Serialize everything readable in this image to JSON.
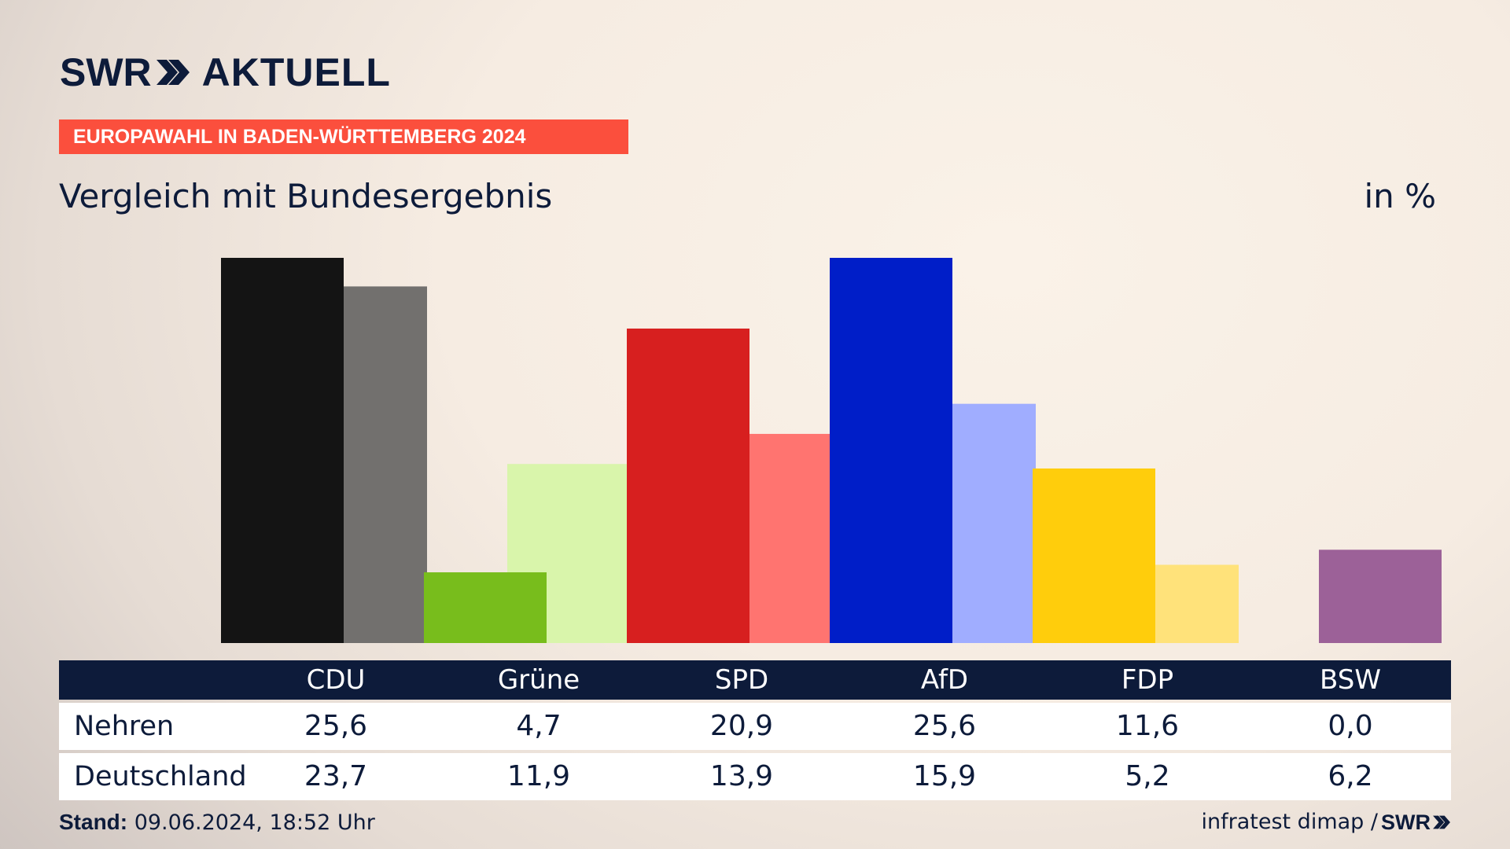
{
  "header": {
    "logo_brand": "SWR",
    "logo_name": "AKTUELL",
    "banner": "EUROPAWAHL IN BADEN-WÜRTTEMBERG 2024",
    "subtitle": "Vergleich mit Bundesergebnis",
    "unit": "in %"
  },
  "chart_data": {
    "type": "bar",
    "categories": [
      "CDU",
      "Grüne",
      "SPD",
      "AfD",
      "FDP",
      "BSW"
    ],
    "ylim": [
      0,
      25.6
    ],
    "series": [
      {
        "name": "Nehren",
        "values": [
          25.6,
          4.7,
          20.9,
          25.6,
          11.6,
          0.0
        ],
        "labels": [
          "25,6",
          "4,7",
          "20,9",
          "25,6",
          "11,6",
          "0,0"
        ]
      },
      {
        "name": "Deutschland",
        "values": [
          23.7,
          11.9,
          13.9,
          15.9,
          5.2,
          6.2
        ],
        "labels": [
          "23,7",
          "11,9",
          "13,9",
          "15,9",
          "5,2",
          "6,2"
        ]
      }
    ],
    "colors": {
      "primary": [
        "#141414",
        "#78bd1c",
        "#d71f1f",
        "#001ec8",
        "#ffcd0c",
        "#9c6198"
      ],
      "secondary": [
        "#72706e",
        "#d9f5ab",
        "#ff7470",
        "#a0adff",
        "#ffe27a",
        "#9c6198"
      ]
    },
    "grid": false,
    "legend": "table-below"
  },
  "footer": {
    "stand_label": "Stand:",
    "stand_value": "09.06.2024, 18:52 Uhr",
    "source": "infratest dimap /",
    "source_brand": "SWR"
  }
}
